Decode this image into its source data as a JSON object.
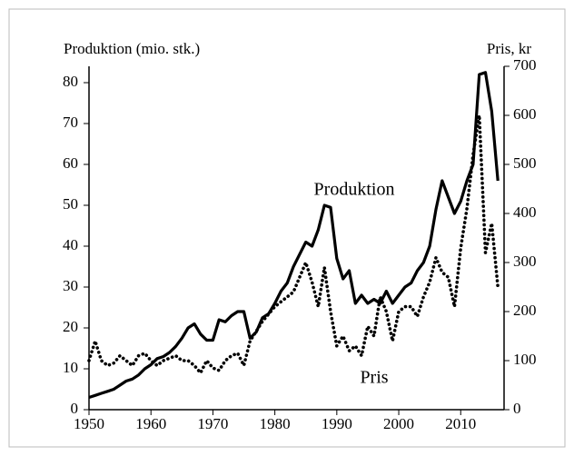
{
  "chart_data": {
    "type": "line",
    "y_label": "Produktion (mio. stk.)",
    "y2_label": "Pris, kr",
    "annotations": [
      "Produktion",
      "Pris"
    ],
    "x": [
      1950,
      1951,
      1952,
      1953,
      1954,
      1955,
      1956,
      1957,
      1958,
      1959,
      1960,
      1961,
      1962,
      1963,
      1964,
      1965,
      1966,
      1967,
      1968,
      1969,
      1970,
      1971,
      1972,
      1973,
      1974,
      1975,
      1976,
      1977,
      1978,
      1979,
      1980,
      1981,
      1982,
      1983,
      1984,
      1985,
      1986,
      1987,
      1988,
      1989,
      1990,
      1991,
      1992,
      1993,
      1994,
      1995,
      1996,
      1997,
      1998,
      1999,
      2000,
      2001,
      2002,
      2003,
      2004,
      2005,
      2006,
      2007,
      2008,
      2009,
      2010,
      2011,
      2012,
      2013,
      2014,
      2015,
      2016
    ],
    "series": [
      {
        "name": "Produktion",
        "color": "#000000",
        "style": "solid",
        "values": [
          3,
          3.5,
          4,
          4.5,
          5,
          6,
          7,
          7.5,
          8.5,
          10,
          11,
          12.5,
          13,
          14,
          15.5,
          17.5,
          20,
          21,
          18.5,
          17,
          17,
          22,
          21.5,
          23,
          24,
          24,
          17.5,
          19,
          22.5,
          23.5,
          26,
          29,
          31,
          35,
          38,
          41,
          40,
          44,
          50,
          49.5,
          37,
          32,
          34,
          26,
          28,
          26,
          27,
          26,
          29,
          26,
          28,
          30,
          31,
          34,
          36,
          40,
          49,
          56,
          52,
          48,
          51,
          56,
          60,
          82,
          82.5,
          73,
          56
        ]
      },
      {
        "name": "Pris",
        "color": "#000000",
        "style": "dotted",
        "axis": "y2",
        "values": [
          100,
          140,
          100,
          90,
          95,
          110,
          100,
          90,
          110,
          115,
          100,
          90,
          100,
          105,
          110,
          100,
          100,
          90,
          75,
          100,
          85,
          80,
          100,
          110,
          115,
          90,
          140,
          160,
          180,
          195,
          210,
          220,
          230,
          240,
          270,
          300,
          260,
          210,
          290,
          200,
          130,
          150,
          120,
          130,
          110,
          170,
          150,
          230,
          200,
          140,
          200,
          210,
          210,
          190,
          230,
          260,
          310,
          280,
          270,
          210,
          330,
          410,
          520,
          600,
          320,
          380,
          250
        ]
      }
    ],
    "xlim": [
      1950,
      2017
    ],
    "xticks": [
      1950,
      1960,
      1970,
      1980,
      1990,
      2000,
      2010
    ],
    "ylim": [
      0,
      84
    ],
    "yticks": [
      0,
      10,
      20,
      30,
      40,
      50,
      60,
      70,
      80
    ],
    "y2lim": [
      0,
      700
    ],
    "y2ticks": [
      0,
      100,
      200,
      300,
      400,
      500,
      600,
      700
    ]
  }
}
